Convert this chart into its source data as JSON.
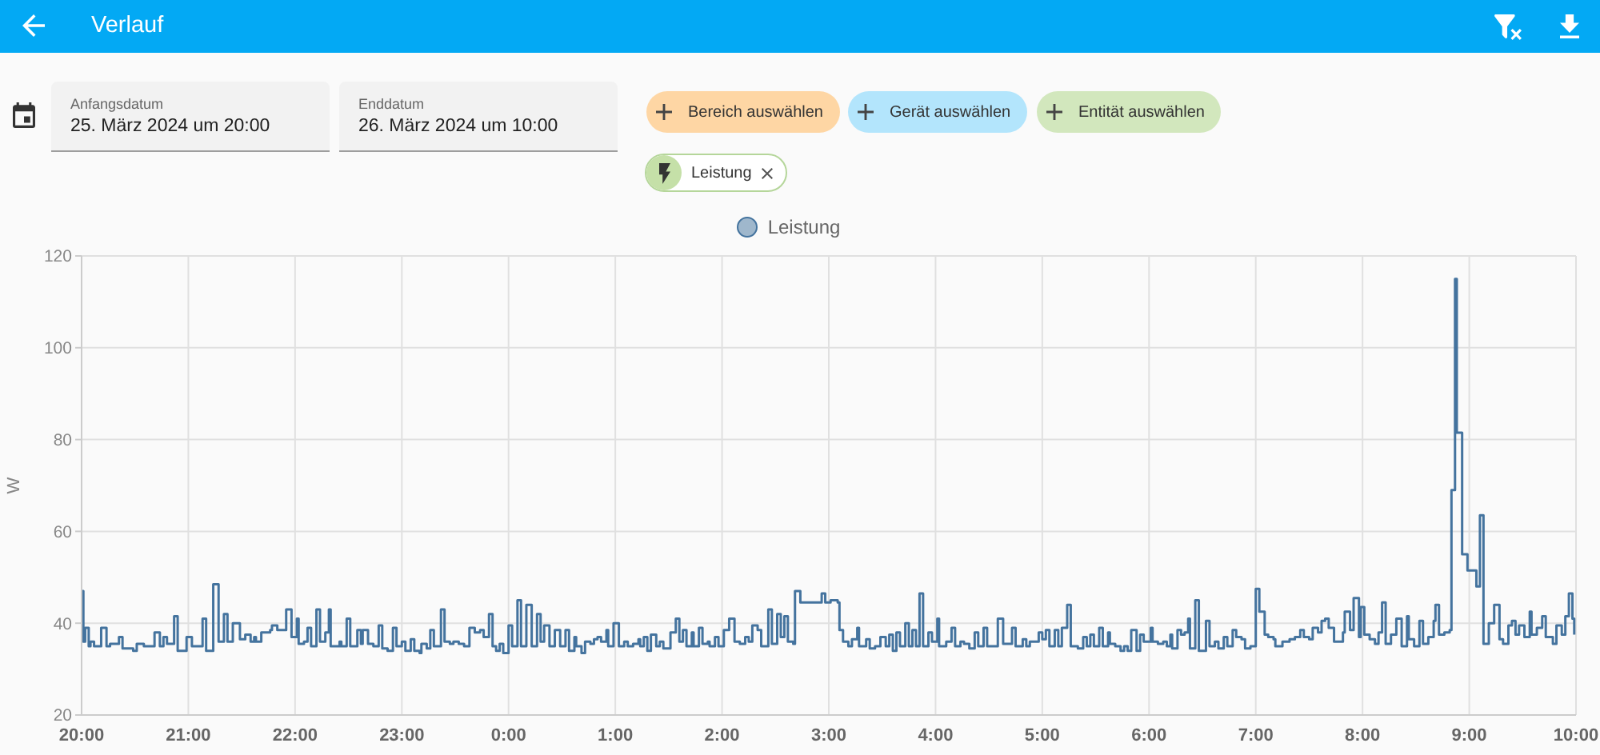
{
  "chart_data": {
    "type": "step",
    "title": "Verlauf",
    "ylabel": "W",
    "annotations": [
      "Anfangsdatum",
      "25. März 2024 um 20:00",
      "Enddatum",
      "26. März 2024 um 10:00",
      "Bereich auswählen",
      "Gerät auswählen",
      "Entität auswählen",
      "Leistung"
    ],
    "x": [
      "2024-03-25T20:00",
      "2024-03-25T20:01",
      "2024-03-25T20:02",
      "2024-03-25T20:04",
      "2024-03-25T20:05",
      "2024-03-25T20:07",
      "2024-03-25T20:11",
      "2024-03-25T20:14",
      "2024-03-25T20:16",
      "2024-03-25T20:21",
      "2024-03-25T20:23",
      "2024-03-25T20:29",
      "2024-03-25T20:31",
      "2024-03-25T20:35",
      "2024-03-25T20:41",
      "2024-03-25T20:44",
      "2024-03-25T20:46",
      "2024-03-25T20:48",
      "2024-03-25T20:52",
      "2024-03-25T20:54",
      "2024-03-25T20:59",
      "2024-03-25T21:02",
      "2024-03-25T21:08",
      "2024-03-25T21:10",
      "2024-03-25T21:14",
      "2024-03-25T21:17",
      "2024-03-25T21:20",
      "2024-03-25T21:22",
      "2024-03-25T21:25",
      "2024-03-25T21:29",
      "2024-03-25T21:32",
      "2024-03-25T21:35",
      "2024-03-25T21:37",
      "2024-03-25T21:38",
      "2024-03-25T21:41",
      "2024-03-25T21:46",
      "2024-03-25T21:47",
      "2024-03-25T21:50",
      "2024-03-25T21:55",
      "2024-03-25T21:58",
      "2024-03-25T22:01",
      "2024-03-25T22:02",
      "2024-03-25T22:05",
      "2024-03-25T22:07",
      "2024-03-25T22:09",
      "2024-03-25T22:12",
      "2024-03-25T22:14",
      "2024-03-25T22:17",
      "2024-03-25T22:19",
      "2024-03-25T22:20",
      "2024-03-25T22:25",
      "2024-03-25T22:26",
      "2024-03-25T22:29",
      "2024-03-25T22:31",
      "2024-03-25T22:35",
      "2024-03-25T22:37",
      "2024-03-25T22:38",
      "2024-03-25T22:41",
      "2024-03-25T22:44",
      "2024-03-25T22:47",
      "2024-03-25T22:49",
      "2024-03-25T22:52",
      "2024-03-25T22:55",
      "2024-03-25T22:57",
      "2024-03-25T23:00",
      "2024-03-25T23:02",
      "2024-03-25T23:05",
      "2024-03-25T23:07",
      "2024-03-25T23:10",
      "2024-03-25T23:11",
      "2024-03-25T23:14",
      "2024-03-25T23:16",
      "2024-03-25T23:18",
      "2024-03-25T23:22",
      "2024-03-25T23:24",
      "2024-03-25T23:27",
      "2024-03-25T23:29",
      "2024-03-25T23:32",
      "2024-03-25T23:35",
      "2024-03-25T23:38",
      "2024-03-25T23:41",
      "2024-03-25T23:44",
      "2024-03-25T23:46",
      "2024-03-25T23:49",
      "2024-03-25T23:51",
      "2024-03-25T23:53",
      "2024-03-25T23:55",
      "2024-03-25T23:57",
      "2024-03-26T00:00",
      "2024-03-26T00:02",
      "2024-03-26T00:05",
      "2024-03-26T00:07",
      "2024-03-26T00:10",
      "2024-03-26T00:13",
      "2024-03-26T00:16",
      "2024-03-26T00:18",
      "2024-03-26T00:20",
      "2024-03-26T00:23",
      "2024-03-26T00:26",
      "2024-03-26T00:29",
      "2024-03-26T00:32",
      "2024-03-26T00:34",
      "2024-03-26T00:37",
      "2024-03-26T00:38",
      "2024-03-26T00:41",
      "2024-03-26T00:43",
      "2024-03-26T00:46",
      "2024-03-26T00:48",
      "2024-03-26T00:50",
      "2024-03-26T00:52",
      "2024-03-26T00:55",
      "2024-03-26T00:56",
      "2024-03-26T00:59",
      "2024-03-26T01:02",
      "2024-03-26T01:05",
      "2024-03-26T01:07",
      "2024-03-26T01:10",
      "2024-03-26T01:13",
      "2024-03-26T01:14",
      "2024-03-26T01:16",
      "2024-03-26T01:18",
      "2024-03-26T01:20",
      "2024-03-26T01:23",
      "2024-03-26T01:25",
      "2024-03-26T01:27",
      "2024-03-26T01:31",
      "2024-03-26T01:34",
      "2024-03-26T01:36",
      "2024-03-26T01:38",
      "2024-03-26T01:40",
      "2024-03-26T01:43",
      "2024-03-26T01:44",
      "2024-03-26T01:47",
      "2024-03-26T01:49",
      "2024-03-26T01:52",
      "2024-03-26T01:53",
      "2024-03-26T01:56",
      "2024-03-26T01:58",
      "2024-03-26T02:01",
      "2024-03-26T02:04",
      "2024-03-26T02:07",
      "2024-03-26T02:10",
      "2024-03-26T02:13",
      "2024-03-26T02:15",
      "2024-03-26T02:17",
      "2024-03-26T02:20",
      "2024-03-26T02:22",
      "2024-03-26T02:26",
      "2024-03-26T02:28",
      "2024-03-26T02:31",
      "2024-03-26T02:33",
      "2024-03-26T02:35",
      "2024-03-26T02:37",
      "2024-03-26T02:40",
      "2024-03-26T02:41",
      "2024-03-26T02:44",
      "2024-03-26T02:56",
      "2024-03-26T02:58",
      "2024-03-26T03:01",
      "2024-03-26T03:05",
      "2024-03-26T03:06",
      "2024-03-26T03:08",
      "2024-03-26T03:11",
      "2024-03-26T03:13",
      "2024-03-26T03:16",
      "2024-03-26T03:17",
      "2024-03-26T03:21",
      "2024-03-26T03:23",
      "2024-03-26T03:26",
      "2024-03-26T03:29",
      "2024-03-26T03:32",
      "2024-03-26T03:34",
      "2024-03-26T03:36",
      "2024-03-26T03:38",
      "2024-03-26T03:40",
      "2024-03-26T03:43",
      "2024-03-26T03:45",
      "2024-03-26T03:47",
      "2024-03-26T03:49",
      "2024-03-26T03:51",
      "2024-03-26T03:53",
      "2024-03-26T03:56",
      "2024-03-26T03:58",
      "2024-03-26T04:01",
      "2024-03-26T04:02",
      "2024-03-26T04:06",
      "2024-03-26T04:09",
      "2024-03-26T04:11",
      "2024-03-26T04:14",
      "2024-03-26T04:16",
      "2024-03-26T04:19",
      "2024-03-26T04:22",
      "2024-03-26T04:24",
      "2024-03-26T04:27",
      "2024-03-26T04:29",
      "2024-03-26T04:35",
      "2024-03-26T04:38",
      "2024-03-26T04:43",
      "2024-03-26T04:45",
      "2024-03-26T04:49",
      "2024-03-26T04:51",
      "2024-03-26T04:53",
      "2024-03-26T04:58",
      "2024-03-26T05:00",
      "2024-03-26T05:02",
      "2024-03-26T05:04",
      "2024-03-26T05:07",
      "2024-03-26T05:09",
      "2024-03-26T05:11",
      "2024-03-26T05:14",
      "2024-03-26T05:16",
      "2024-03-26T05:20",
      "2024-03-26T05:23",
      "2024-03-26T05:25",
      "2024-03-26T05:27",
      "2024-03-26T05:29",
      "2024-03-26T05:32",
      "2024-03-26T05:34",
      "2024-03-26T05:37",
      "2024-03-26T05:38",
      "2024-03-26T05:41",
      "2024-03-26T05:44",
      "2024-03-26T05:46",
      "2024-03-26T05:48",
      "2024-03-26T05:50",
      "2024-03-26T05:53",
      "2024-03-26T05:55",
      "2024-03-26T05:57",
      "2024-03-26T06:01",
      "2024-03-26T06:02",
      "2024-03-26T06:05",
      "2024-03-26T06:08",
      "2024-03-26T06:10",
      "2024-03-26T06:12",
      "2024-03-26T06:13",
      "2024-03-26T06:16",
      "2024-03-26T06:18",
      "2024-03-26T06:20",
      "2024-03-26T06:22",
      "2024-03-26T06:23",
      "2024-03-26T06:26",
      "2024-03-26T06:28",
      "2024-03-26T06:32",
      "2024-03-26T06:34",
      "2024-03-26T06:37",
      "2024-03-26T06:39",
      "2024-03-26T06:42",
      "2024-03-26T06:44",
      "2024-03-26T06:47",
      "2024-03-26T06:49",
      "2024-03-26T06:52",
      "2024-03-26T06:54",
      "2024-03-26T06:57",
      "2024-03-26T07:00",
      "2024-03-26T07:02",
      "2024-03-26T07:05",
      "2024-03-26T07:07",
      "2024-03-26T07:10",
      "2024-03-26T07:11",
      "2024-03-26T07:15",
      "2024-03-26T07:19",
      "2024-03-26T07:22",
      "2024-03-26T07:25",
      "2024-03-26T07:27",
      "2024-03-26T07:30",
      "2024-03-26T07:32",
      "2024-03-26T07:35",
      "2024-03-26T07:37",
      "2024-03-26T07:39",
      "2024-03-26T07:41",
      "2024-03-26T07:44",
      "2024-03-26T07:49",
      "2024-03-26T07:50",
      "2024-03-26T07:53",
      "2024-03-26T07:55",
      "2024-03-26T07:58",
      "2024-03-26T07:59",
      "2024-03-26T08:01",
      "2024-03-26T08:04",
      "2024-03-26T08:07",
      "2024-03-26T08:09",
      "2024-03-26T08:11",
      "2024-03-26T08:13",
      "2024-03-26T08:16",
      "2024-03-26T08:19",
      "2024-03-26T08:22",
      "2024-03-26T08:25",
      "2024-03-26T08:26",
      "2024-03-26T08:29",
      "2024-03-26T08:32",
      "2024-03-26T08:34",
      "2024-03-26T08:37",
      "2024-03-26T08:40",
      "2024-03-26T08:41",
      "2024-03-26T08:43",
      "2024-03-26T08:46",
      "2024-03-26T08:49",
      "2024-03-26T08:50",
      "2024-03-26T08:52",
      "2024-03-26T08:53",
      "2024-03-26T08:56",
      "2024-03-26T08:59",
      "2024-03-26T09:04",
      "2024-03-26T09:06",
      "2024-03-26T09:08",
      "2024-03-26T09:11",
      "2024-03-26T09:14",
      "2024-03-26T09:17",
      "2024-03-26T09:19",
      "2024-03-26T09:22",
      "2024-03-26T09:24",
      "2024-03-26T09:26",
      "2024-03-26T09:28",
      "2024-03-26T09:31",
      "2024-03-26T09:34",
      "2024-03-26T09:35",
      "2024-03-26T09:38",
      "2024-03-26T09:41",
      "2024-03-26T09:43",
      "2024-03-26T09:47",
      "2024-03-26T09:49",
      "2024-03-26T09:52",
      "2024-03-26T09:54",
      "2024-03-26T09:56",
      "2024-03-26T09:58",
      "2024-03-26T09:59"
    ],
    "series": [
      {
        "name": "Leistung",
        "color": "#44739e",
        "values": [
          47,
          36,
          39,
          35,
          36,
          35,
          39,
          35,
          35.5,
          37,
          34.5,
          34,
          35.5,
          35,
          38,
          35,
          37,
          35.5,
          41.5,
          34,
          37,
          35,
          41,
          34,
          48.5,
          36,
          42,
          36,
          40,
          36.5,
          37.5,
          36,
          37,
          36,
          38,
          38.5,
          39.5,
          38.5,
          43,
          37,
          41,
          35.5,
          36,
          39,
          35,
          43,
          36,
          38,
          43,
          35,
          36,
          35,
          41,
          35,
          38.5,
          35.5,
          38.5,
          35.5,
          35,
          39.5,
          34.5,
          34,
          39,
          35,
          36,
          34,
          36.5,
          34,
          33.5,
          35.5,
          34.5,
          38.5,
          35,
          43,
          36,
          35.5,
          36,
          35.5,
          35,
          39,
          38,
          38.5,
          37,
          42,
          35,
          34,
          35.5,
          33.5,
          39.5,
          35,
          45,
          35,
          44,
          35,
          42,
          36,
          39.5,
          35,
          38.5,
          35,
          38.5,
          34,
          37,
          35,
          33.5,
          36,
          35.5,
          36.5,
          37,
          36,
          38.5,
          35,
          40,
          35,
          36,
          35,
          35.5,
          36.5,
          35,
          37,
          34,
          37.5,
          35,
          36,
          34.5,
          38,
          41,
          36,
          38.5,
          35,
          38,
          35,
          39,
          35.5,
          36,
          35,
          37,
          35,
          38.5,
          41,
          36,
          35.5,
          37,
          36,
          39.5,
          38.5,
          35,
          43,
          35.5,
          42,
          37,
          41.5,
          36,
          35.5,
          47,
          44.5,
          46.5,
          44.5,
          45,
          44.5,
          38.5,
          36,
          35,
          36.5,
          39,
          35,
          36.5,
          34.5,
          35,
          37,
          35,
          37.5,
          34,
          38,
          35,
          40,
          35,
          38.5,
          35,
          46.5,
          35,
          38,
          36,
          41,
          35,
          36,
          39,
          35,
          36,
          35.5,
          34.5,
          38,
          35,
          39,
          35,
          41,
          35.5,
          39,
          35,
          36.5,
          35,
          36,
          38,
          36.5,
          38.5,
          35,
          38.5,
          35,
          39,
          44,
          35,
          34.5,
          37,
          35,
          37.5,
          35,
          39,
          35,
          38,
          35.5,
          35,
          34,
          35,
          34,
          38.5,
          34,
          37.5,
          36,
          39,
          36,
          35.5,
          36,
          35,
          37.5,
          34.5,
          38.5,
          37.5,
          38,
          41,
          34.5,
          45,
          34,
          40.5,
          35,
          36,
          34.5,
          37,
          35,
          38.5,
          37,
          36.5,
          34.5,
          35,
          47.5,
          42.5,
          37.5,
          37,
          36.5,
          35,
          36,
          36.5,
          37,
          38.5,
          37,
          36.5,
          39,
          38,
          40.5,
          41,
          39,
          36,
          38,
          42.5,
          38.5,
          45.5,
          37,
          43.5,
          37.5,
          36.5,
          35.5,
          38,
          44.5,
          35.5,
          37.5,
          41,
          35,
          41.5,
          36.5,
          35,
          40.5,
          35.5,
          37,
          40.5,
          44,
          37.5,
          38,
          38.5,
          69,
          115,
          81.5,
          55,
          51.5,
          48,
          63.5,
          35.5,
          40,
          44,
          36.5,
          35.5,
          39.5,
          40.5,
          37.5,
          39.5,
          37,
          42.5,
          37.5,
          39,
          41.5,
          37,
          35.5,
          39.5,
          37.5,
          41.5,
          46.5,
          41,
          37.5
        ]
      }
    ],
    "xlim": [
      "2024-03-25T20:00",
      "2024-03-26T10:00"
    ],
    "xticks": [
      {
        "value": "2024-03-25T20:00",
        "label": "20:00"
      },
      {
        "value": "2024-03-25T21:00",
        "label": "21:00"
      },
      {
        "value": "2024-03-25T22:00",
        "label": "22:00"
      },
      {
        "value": "2024-03-25T23:00",
        "label": "23:00"
      },
      {
        "value": "2024-03-26T00:00",
        "label": "0:00"
      },
      {
        "value": "2024-03-26T01:00",
        "label": "1:00"
      },
      {
        "value": "2024-03-26T02:00",
        "label": "2:00"
      },
      {
        "value": "2024-03-26T03:00",
        "label": "3:00"
      },
      {
        "value": "2024-03-26T04:00",
        "label": "4:00"
      },
      {
        "value": "2024-03-26T05:00",
        "label": "5:00"
      },
      {
        "value": "2024-03-26T06:00",
        "label": "6:00"
      },
      {
        "value": "2024-03-26T07:00",
        "label": "7:00"
      },
      {
        "value": "2024-03-26T08:00",
        "label": "8:00"
      },
      {
        "value": "2024-03-26T09:00",
        "label": "9:00"
      },
      {
        "value": "2024-03-26T10:00",
        "label": "10:00"
      }
    ],
    "ylim": [
      20,
      120
    ],
    "yticks": [
      20,
      40,
      60,
      80,
      100,
      120
    ],
    "grid": true,
    "legend": "top"
  }
}
